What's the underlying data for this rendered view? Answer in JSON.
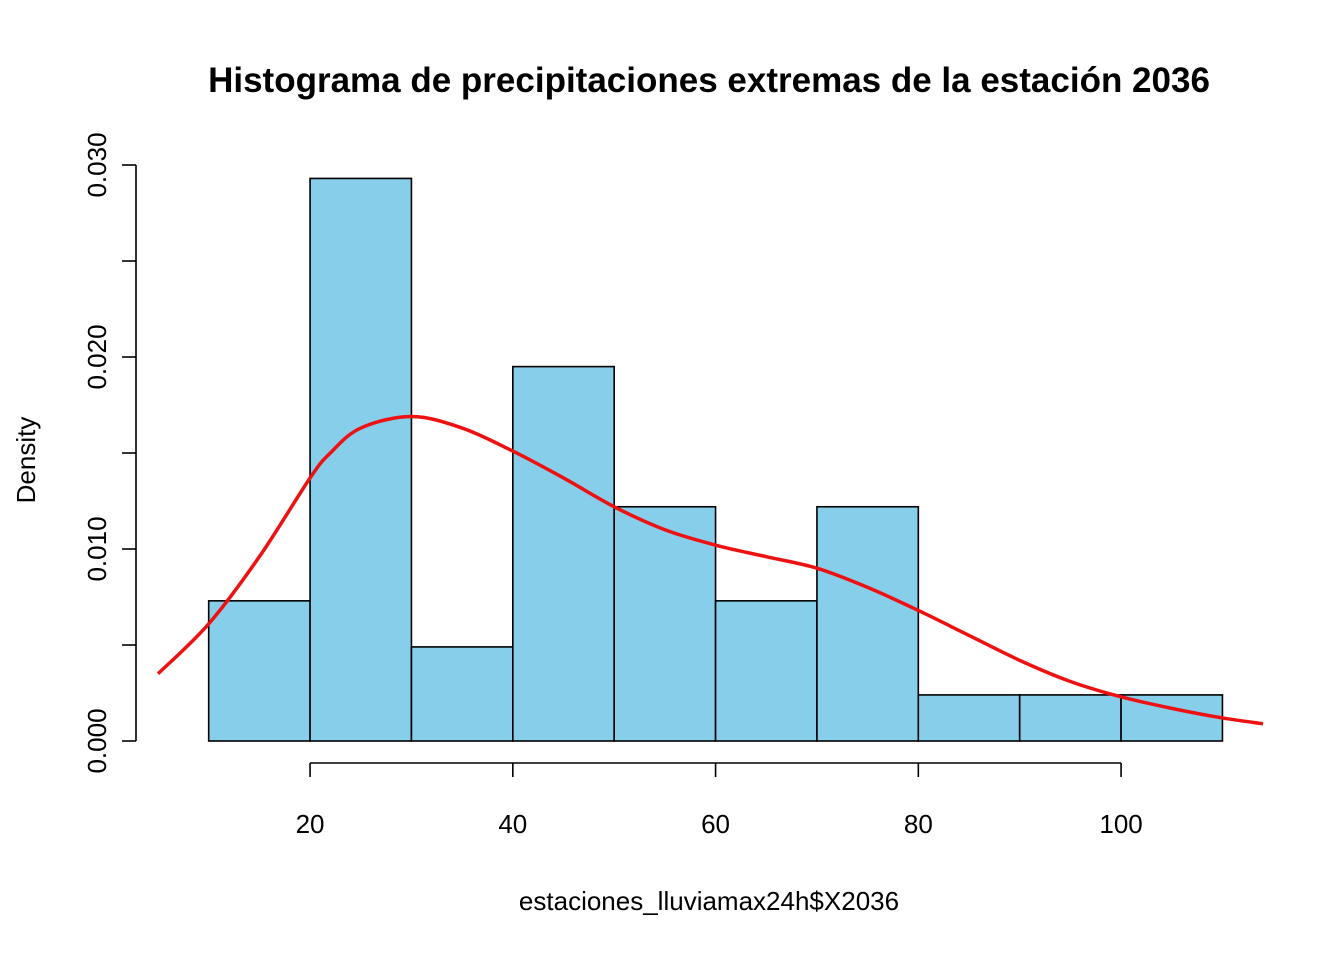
{
  "chart_data": {
    "type": "bar",
    "title": "Histograma de precipitaciones extremas de  la estación 2036",
    "xlabel": "estaciones_lluviamax24h$X2036",
    "ylabel": "Density",
    "xlim": [
      5,
      114
    ],
    "ylim": [
      0,
      0.03
    ],
    "x_ticks": [
      20,
      40,
      60,
      80,
      100
    ],
    "y_ticks": [
      0,
      0.005,
      0.01,
      0.015,
      0.02,
      0.025,
      0.03
    ],
    "y_tick_labels": [
      "0.000",
      "0.010",
      "0.020",
      "0.030"
    ],
    "y_labeled_ticks": [
      0,
      0.01,
      0.02,
      0.03
    ],
    "grid": false,
    "bins": [
      {
        "start": 10,
        "end": 20,
        "density": 0.0073
      },
      {
        "start": 20,
        "end": 30,
        "density": 0.0293
      },
      {
        "start": 30,
        "end": 40,
        "density": 0.0049
      },
      {
        "start": 40,
        "end": 50,
        "density": 0.0195
      },
      {
        "start": 50,
        "end": 60,
        "density": 0.0122
      },
      {
        "start": 60,
        "end": 70,
        "density": 0.0073
      },
      {
        "start": 70,
        "end": 80,
        "density": 0.0122
      },
      {
        "start": 80,
        "end": 90,
        "density": 0.0024
      },
      {
        "start": 90,
        "end": 100,
        "density": 0.0024
      },
      {
        "start": 100,
        "end": 110,
        "density": 0.0024
      }
    ],
    "density_curve": {
      "color": "#ee1111",
      "x": [
        5,
        10,
        15,
        20,
        22,
        25,
        30,
        35,
        40,
        45,
        50,
        55,
        60,
        65,
        70,
        75,
        80,
        85,
        90,
        95,
        100,
        105,
        110,
        114
      ],
      "y": [
        0.0035,
        0.0061,
        0.0096,
        0.0137,
        0.015,
        0.0163,
        0.0169,
        0.0163,
        0.0151,
        0.0137,
        0.0122,
        0.011,
        0.0102,
        0.0096,
        0.009,
        0.008,
        0.0068,
        0.0055,
        0.0042,
        0.0031,
        0.0023,
        0.0017,
        0.0012,
        0.0009
      ]
    },
    "bar_fill": "#87ceeb",
    "bar_stroke": "#000000"
  }
}
